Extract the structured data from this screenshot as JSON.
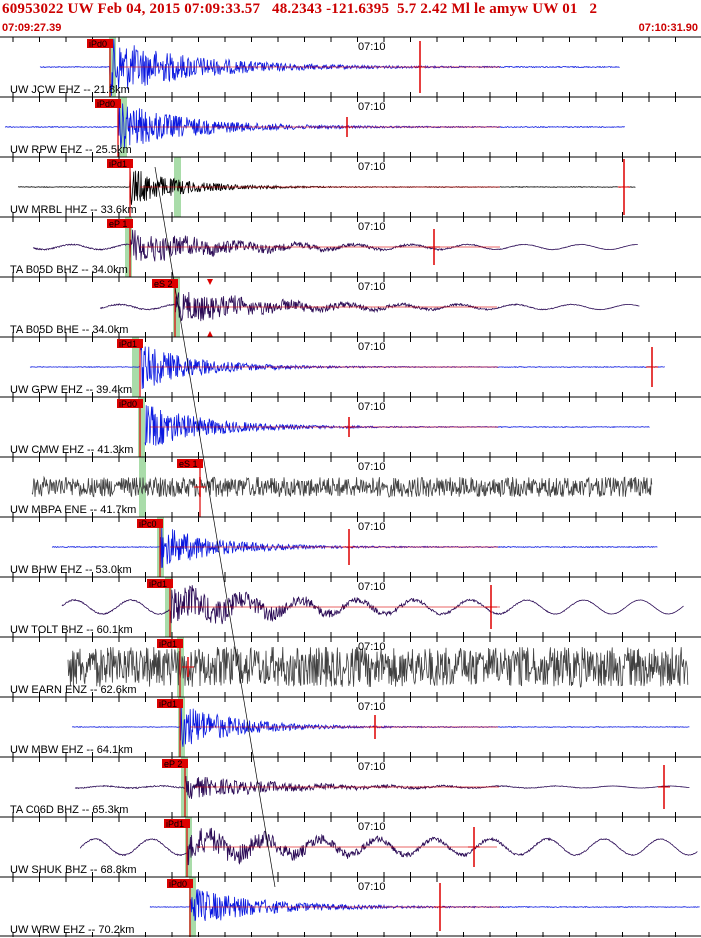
{
  "header": {
    "title": "60953022 UW Feb 04, 2015 07:09:33.57   48.2343 -121.6395  5.7 2.42 Ml le amyw UW 01   2",
    "window_start": "07:09:27.39",
    "window_end": "07:10:31.90"
  },
  "chart_data": {
    "type": "seismogram-record-section",
    "time_tick_label": "07:10",
    "colors": {
      "trace_ehz": "#0a18e0",
      "trace_hhz": "#000000",
      "trace_bh": "#2a0a55",
      "trace_enz": "#404040",
      "pick": "#dd0000",
      "band": "#a9dca9",
      "grid": "#000000"
    },
    "traces": [
      {
        "station": "UW JCW EHZ -- 21.8km",
        "pick_label": "iPd0",
        "color_key": "trace_ehz"
      },
      {
        "station": "UW RPW EHZ -- 25.5km",
        "pick_label": "iPd0",
        "color_key": "trace_ehz"
      },
      {
        "station": "UW MRBL HHZ -- 33.6km",
        "pick_label": "iPd1",
        "color_key": "trace_hhz"
      },
      {
        "station": "TA B05D BHZ -- 34.0km",
        "pick_label": "eP 1",
        "color_key": "trace_bh"
      },
      {
        "station": "TA B05D BHE -- 34.0km",
        "pick_label": "eS 2",
        "color_key": "trace_bh"
      },
      {
        "station": "UW GPW EHZ -- 39.4km",
        "pick_label": "iPd1",
        "color_key": "trace_ehz"
      },
      {
        "station": "UW CMW EHZ -- 41.3km",
        "pick_label": "iPd0",
        "color_key": "trace_ehz"
      },
      {
        "station": "UW MBPA ENE -- 41.7km",
        "pick_label": "eS 1",
        "color_key": "trace_enz"
      },
      {
        "station": "UW BHW EHZ -- 53.0km",
        "pick_label": "iPc0",
        "color_key": "trace_ehz"
      },
      {
        "station": "UW TOLT BHZ -- 60.1km",
        "pick_label": "iPd1",
        "color_key": "trace_bh"
      },
      {
        "station": "UW EARN ENZ -- 62.6km",
        "pick_label": "iPd1",
        "color_key": "trace_enz"
      },
      {
        "station": "UW MBW EHZ -- 64.1km",
        "pick_label": "iPd1",
        "color_key": "trace_ehz"
      },
      {
        "station": "TA C06D BHZ -- 65.3km",
        "pick_label": "eP 2",
        "color_key": "trace_bh"
      },
      {
        "station": "UW SHUK BHZ -- 68.8km",
        "pick_label": "iPd1",
        "color_key": "trace_bh"
      },
      {
        "station": "UW WRW EHZ -- 70.2km",
        "pick_label": "iPd0",
        "color_key": "trace_ehz"
      }
    ]
  }
}
